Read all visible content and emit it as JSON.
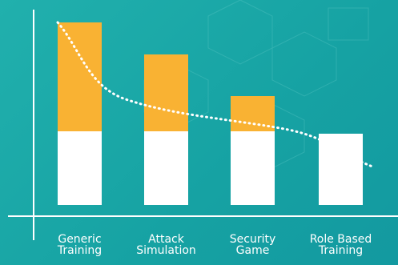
{
  "chart_data": {
    "type": "bar",
    "stacked": true,
    "categories": [
      "Generic Training",
      "Attack Simulation",
      "Security Game",
      "Role Based Training"
    ],
    "series": [
      {
        "color": "#ffffff",
        "values": [
          92,
          92,
          92,
          89
        ]
      },
      {
        "color": "#f9b233",
        "values": [
          136,
          96,
          44,
          0
        ]
      }
    ],
    "ylim": [
      0,
      240
    ]
  }
}
